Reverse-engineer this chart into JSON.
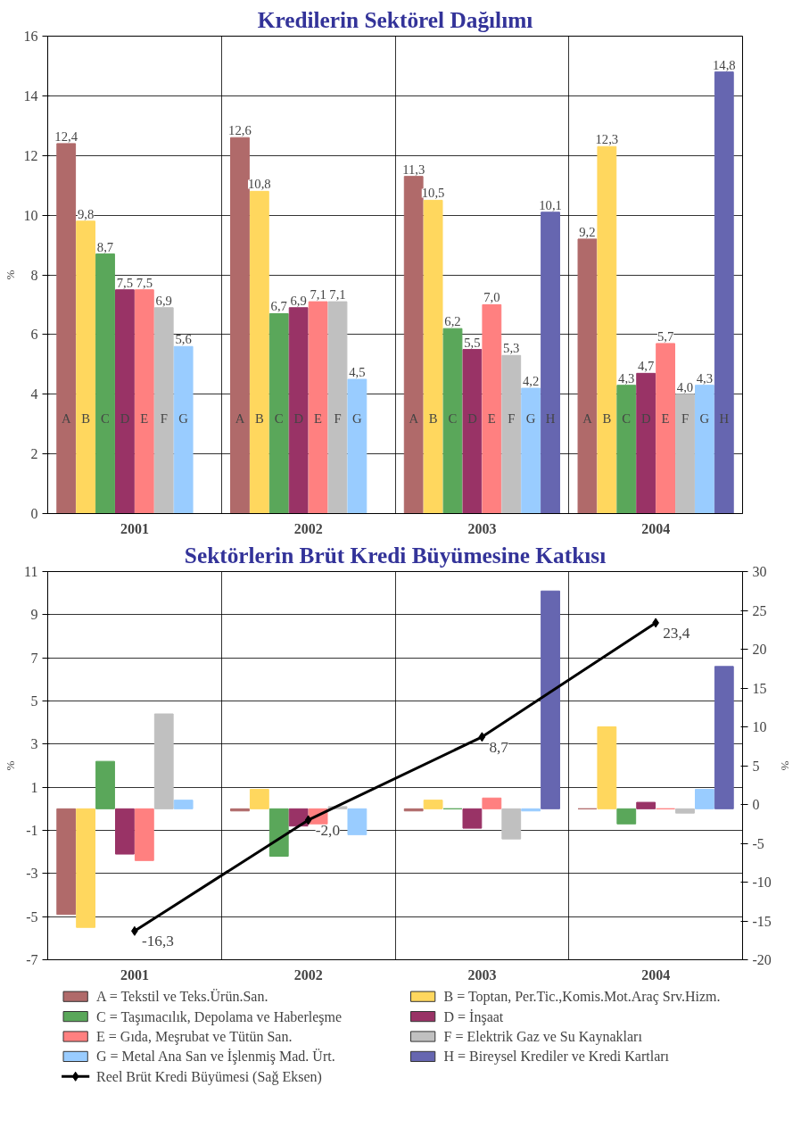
{
  "chart_data": [
    {
      "type": "bar",
      "title": "Kredilerin Sektörel Dağılımı",
      "ylabel": "%",
      "categories": [
        "2001",
        "2002",
        "2003",
        "2004"
      ],
      "ylim": [
        0,
        16
      ],
      "yticks": [
        0,
        2,
        4,
        6,
        8,
        10,
        12,
        14,
        16
      ],
      "grid": true,
      "legend": false,
      "series": [
        {
          "name": "A",
          "color": "#b06a6a",
          "values": [
            12.4,
            12.6,
            11.3,
            9.2
          ],
          "value_labels": [
            "12,4",
            "12,6",
            "11,3",
            "9,2"
          ]
        },
        {
          "name": "B",
          "color": "#ffd75e",
          "values": [
            9.8,
            10.8,
            10.5,
            12.3
          ],
          "value_labels": [
            "9,8",
            "10,8",
            "10,5",
            "12,3"
          ]
        },
        {
          "name": "C",
          "color": "#5aa75a",
          "values": [
            8.7,
            6.7,
            6.2,
            4.3
          ],
          "value_labels": [
            "8,7",
            "6,7",
            "6,2",
            "4,3"
          ]
        },
        {
          "name": "D",
          "color": "#993366",
          "values": [
            7.5,
            6.9,
            5.5,
            4.7
          ],
          "value_labels": [
            "7,5",
            "6,9",
            "5,5",
            "4,7"
          ]
        },
        {
          "name": "E",
          "color": "#ff8080",
          "values": [
            7.5,
            7.1,
            7.0,
            5.7
          ],
          "value_labels": [
            "7,5",
            "7,1",
            "7,0",
            "5,7"
          ]
        },
        {
          "name": "F",
          "color": "#c0c0c0",
          "values": [
            6.9,
            7.1,
            5.3,
            4.0
          ],
          "value_labels": [
            "6,9",
            "7,1",
            "5,3",
            "4,0"
          ]
        },
        {
          "name": "G",
          "color": "#99ccff",
          "values": [
            5.6,
            4.5,
            4.2,
            4.3
          ],
          "value_labels": [
            "5,6",
            "4,5",
            "4,2",
            "4,3"
          ]
        },
        {
          "name": "H",
          "color": "#6666b0",
          "values": [
            null,
            null,
            10.1,
            14.8
          ],
          "value_labels": [
            null,
            null,
            "10,1",
            "14,8"
          ]
        }
      ]
    },
    {
      "type": "bar",
      "title": "Sektörlerin Brüt Kredi Büyümesine Katkısı",
      "ylabel": "%",
      "y2label": "%",
      "categories": [
        "2001",
        "2002",
        "2003",
        "2004"
      ],
      "ylim": [
        -7,
        11
      ],
      "yticks": [
        -7,
        -5,
        -3,
        -1,
        1,
        3,
        5,
        7,
        9,
        11
      ],
      "y2lim": [
        -20,
        30
      ],
      "y2ticks": [
        -20,
        -15,
        -10,
        -5,
        0,
        5,
        10,
        15,
        20,
        25,
        30
      ],
      "grid": true,
      "legend": "bottom",
      "series": [
        {
          "name": "A = Tekstil ve Teks.Ürün.San.",
          "color": "#b06a6a",
          "values": [
            -4.9,
            -0.1,
            -0.1,
            0
          ]
        },
        {
          "name": "B = Toptan, Per.Tic.,Komis.Mot.Araç Srv.Hizm.",
          "color": "#ffd75e",
          "values": [
            -5.5,
            0.9,
            0.4,
            3.8
          ]
        },
        {
          "name": "C = Taşımacılık, Depolama ve Haberleşme",
          "color": "#5aa75a",
          "values": [
            2.2,
            -2.2,
            0,
            -0.7
          ]
        },
        {
          "name": "D = İnşaat",
          "color": "#993366",
          "values": [
            -2.1,
            -0.8,
            -0.9,
            0.3
          ]
        },
        {
          "name": "E = Gıda, Meşrubat ve Tütün San.",
          "color": "#ff8080",
          "values": [
            -2.4,
            -0.7,
            0.5,
            0
          ]
        },
        {
          "name": "F = Elektrik Gaz ve Su Kaynakları",
          "color": "#c0c0c0",
          "values": [
            4.4,
            0.1,
            -1.4,
            -0.2
          ]
        },
        {
          "name": "G = Metal Ana San ve İşlenmiş Mad. Ürt.",
          "color": "#99ccff",
          "values": [
            0.4,
            -1.2,
            -0.1,
            0.9
          ]
        },
        {
          "name": "H = Bireysel Krediler ve Kredi Kartları",
          "color": "#6666b0",
          "values": [
            null,
            null,
            10.1,
            6.6
          ]
        },
        {
          "name": "Reel Brüt Kredi Büyümesi (Sağ Eksen)",
          "type": "line",
          "axis": "y2",
          "color": "#000000",
          "marker": "diamond",
          "line_style": "solid",
          "values": [
            -16.3,
            -2.0,
            8.7,
            23.4
          ],
          "value_labels": [
            "-16,3",
            "-2,0",
            "8,7",
            "23,4"
          ]
        }
      ]
    }
  ]
}
